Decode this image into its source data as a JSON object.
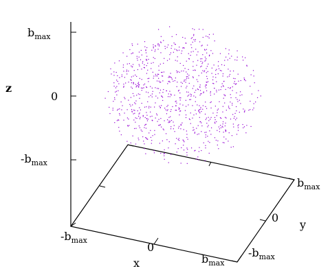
{
  "chart_data": {
    "type": "scatter",
    "title": "",
    "xlabel": "x",
    "ylabel": "y",
    "zlabel": "z",
    "ticks": {
      "x": [
        {
          "value": -1,
          "main": "-b",
          "sub": "max"
        },
        {
          "value": 0,
          "main": "0",
          "sub": ""
        },
        {
          "value": 1,
          "main": "b",
          "sub": "max"
        }
      ],
      "y": [
        {
          "value": -1,
          "main": "-b",
          "sub": "max"
        },
        {
          "value": 0,
          "main": "0",
          "sub": ""
        },
        {
          "value": 1,
          "main": "b",
          "sub": "max"
        }
      ],
      "z": [
        {
          "value": -1,
          "main": "-b",
          "sub": "max"
        },
        {
          "value": 0,
          "main": "0",
          "sub": ""
        },
        {
          "value": 1,
          "main": "b",
          "sub": "max"
        }
      ]
    },
    "xlim": [
      -1,
      1
    ],
    "ylim": [
      -1,
      1
    ],
    "zlim": [
      -1,
      1
    ],
    "grid": false,
    "point_color": "#9400d3",
    "series": [
      {
        "description_shape": "uniform random points inside a sphere",
        "center": [
          0,
          0,
          0.02
        ],
        "radius": 0.9,
        "count": 900
      }
    ]
  }
}
